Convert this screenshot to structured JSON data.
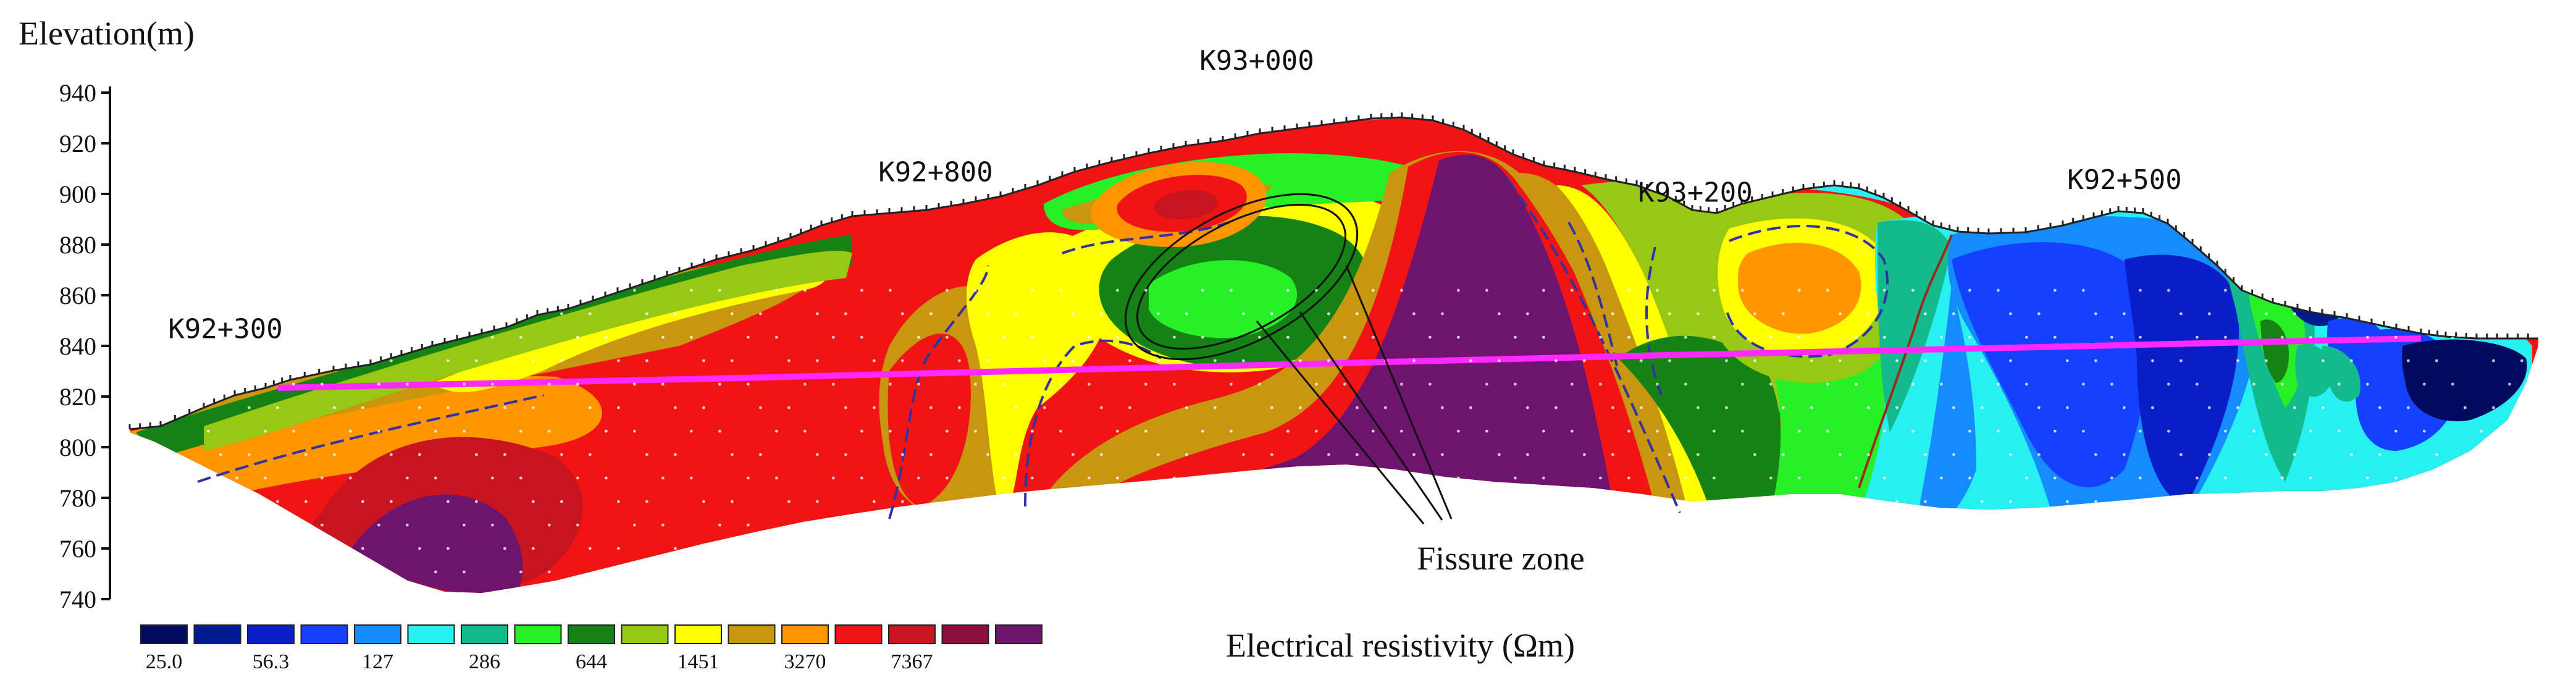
{
  "chart_data": {
    "type": "heatmap",
    "title": "",
    "ylabel": "Elevation(m)",
    "xlabel": "",
    "ylim": [
      740,
      940
    ],
    "y_ticks": [
      740,
      760,
      780,
      800,
      820,
      840,
      860,
      880,
      900,
      920,
      940
    ],
    "grid": false,
    "chainage_labels": [
      {
        "text": "K92+300",
        "elevation": 843
      },
      {
        "text": "K92+800",
        "elevation": 905
      },
      {
        "text": "K93+000",
        "elevation": 949
      },
      {
        "text": "K93+200",
        "elevation": 897
      },
      {
        "text": "K92+500",
        "elevation": 902
      }
    ],
    "annotation": {
      "text": "Fissure zone"
    },
    "legend": {
      "title": "Electrical resistivity (Ωm)",
      "placement": "bottom",
      "colors": [
        "#000a5f",
        "#001a90",
        "#0a1ec8",
        "#1440ff",
        "#148cff",
        "#28f0f0",
        "#14b98c",
        "#28f028",
        "#148214",
        "#96c814",
        "#ffff00",
        "#c8960f",
        "#ff9600",
        "#f01414",
        "#c8141e",
        "#8c0f3c",
        "#6e146e"
      ],
      "tick_labels": [
        "25.0",
        "56.3",
        "127",
        "286",
        "644",
        "1451",
        "3270",
        "7367"
      ]
    },
    "colors": {
      "groundwater_line": "#ff28ff",
      "boundary_dashed": "#3232a0"
    }
  }
}
